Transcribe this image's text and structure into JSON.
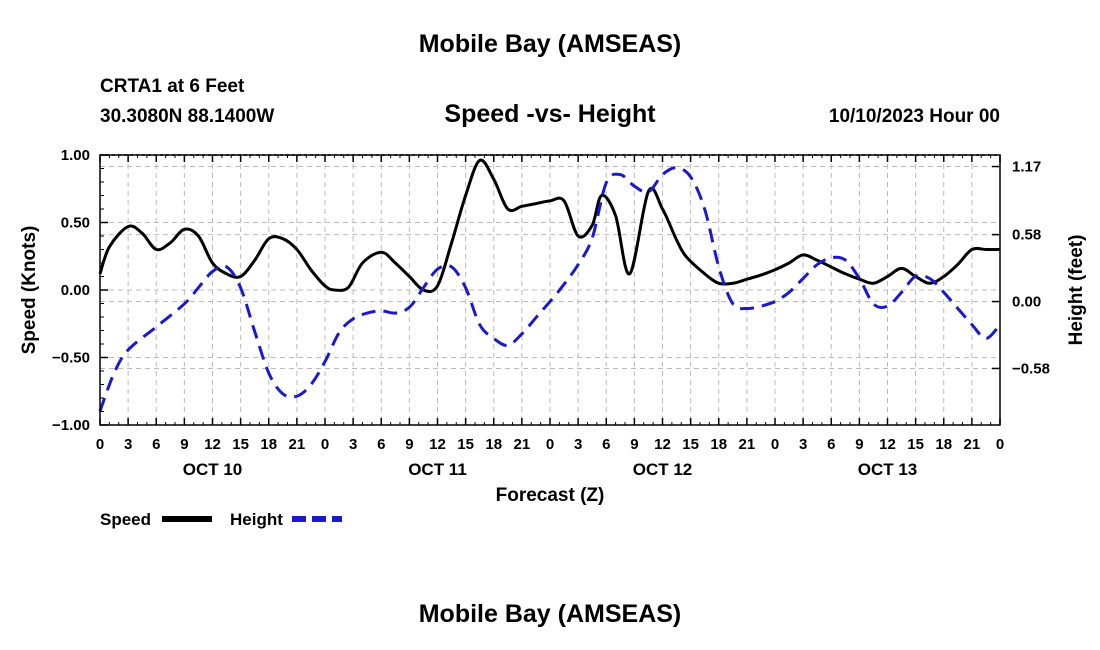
{
  "header": {
    "title": "Mobile Bay (AMSEAS)",
    "station": "CRTA1 at 6 Feet",
    "coords": "30.3080N  88.1400W",
    "subtitle": "Speed -vs- Height",
    "datetime": "10/10/2023 Hour 00"
  },
  "footer": {
    "repeat_title": "Mobile Bay (AMSEAS)"
  },
  "chart_data": {
    "type": "line",
    "title": "Speed -vs- Height",
    "xlabel": "Forecast (Z)",
    "ylabel": "Speed (Knots)",
    "y2label": "Height (feet)",
    "ylim": [
      -1.0,
      1.0
    ],
    "y2lim": [
      -1.07,
      1.27
    ],
    "xlim": [
      0,
      96
    ],
    "yticks": [
      -1.0,
      -0.5,
      0.0,
      0.5,
      1.0
    ],
    "yticklabels": [
      "−1.00",
      "−0.50",
      "0.00",
      "0.50",
      "1.00"
    ],
    "y2ticks": [
      -0.58,
      0.0,
      0.58,
      1.17
    ],
    "y2ticklabels": [
      "−0.58",
      "0.00",
      "0.58",
      "1.17"
    ],
    "xticks": [
      0,
      3,
      6,
      9,
      12,
      15,
      18,
      21,
      24,
      27,
      30,
      33,
      36,
      39,
      42,
      45,
      48,
      51,
      54,
      57,
      60,
      63,
      66,
      69,
      72,
      75,
      78,
      81,
      84,
      87,
      90,
      93,
      96
    ],
    "xticklabels": [
      "0",
      "3",
      "6",
      "9",
      "12",
      "15",
      "18",
      "21",
      "0",
      "3",
      "6",
      "9",
      "12",
      "15",
      "18",
      "21",
      "0",
      "3",
      "6",
      "9",
      "12",
      "15",
      "18",
      "21",
      "0",
      "3",
      "6",
      "9",
      "12",
      "15",
      "18",
      "21",
      "0"
    ],
    "day_labels": [
      {
        "x": 12,
        "label": "OCT 10"
      },
      {
        "x": 36,
        "label": "OCT 11"
      },
      {
        "x": 60,
        "label": "OCT 12"
      },
      {
        "x": 84,
        "label": "OCT 13"
      }
    ],
    "grid": true,
    "legend": {
      "placement": "bottom-left",
      "entries": [
        {
          "name": "Speed",
          "color": "#000000",
          "style": "solid"
        },
        {
          "name": "Height",
          "color": "#1a1acc",
          "style": "dashed"
        }
      ]
    },
    "series": [
      {
        "name": "Speed",
        "axis": "left",
        "color": "#000000",
        "style": "solid",
        "x": [
          0,
          1,
          3,
          4.5,
          6,
          7.5,
          9,
          10.5,
          12,
          13.5,
          15,
          16.5,
          18,
          19.5,
          21,
          22.5,
          24,
          25,
          26.5,
          28,
          30,
          31.5,
          33,
          34.5,
          36,
          37.5,
          39,
          40.5,
          42,
          43.5,
          45,
          46.5,
          48,
          49.5,
          51,
          52.5,
          53.5,
          55,
          56.5,
          58.5,
          60,
          61.5,
          62.5,
          64.5,
          66,
          67.5,
          69,
          70.5,
          72,
          73.5,
          75,
          76.5,
          78,
          79.5,
          81,
          82.5,
          84,
          85.5,
          87,
          88.5,
          90,
          91.5,
          93,
          94.5,
          96
        ],
        "values": [
          0.12,
          0.32,
          0.47,
          0.42,
          0.3,
          0.35,
          0.45,
          0.4,
          0.2,
          0.12,
          0.1,
          0.22,
          0.38,
          0.38,
          0.3,
          0.15,
          0.03,
          0.0,
          0.02,
          0.2,
          0.28,
          0.2,
          0.1,
          0.0,
          0.03,
          0.35,
          0.7,
          0.96,
          0.82,
          0.6,
          0.62,
          0.64,
          0.66,
          0.66,
          0.4,
          0.48,
          0.7,
          0.55,
          0.12,
          0.73,
          0.6,
          0.37,
          0.25,
          0.12,
          0.05,
          0.05,
          0.08,
          0.11,
          0.15,
          0.2,
          0.26,
          0.22,
          0.17,
          0.12,
          0.08,
          0.05,
          0.1,
          0.16,
          0.1,
          0.05,
          0.1,
          0.19,
          0.3,
          0.3,
          0.3
        ]
      },
      {
        "name": "Height",
        "axis": "right",
        "color": "#1a1acc",
        "style": "dashed",
        "x": [
          0,
          1.5,
          3,
          6,
          9,
          10.5,
          12,
          13.5,
          15,
          16.5,
          18,
          19.5,
          21,
          22.5,
          24,
          25.5,
          27,
          28.5,
          30,
          31.5,
          33,
          34.5,
          36,
          37.5,
          39,
          40.5,
          42,
          43.5,
          45,
          46.5,
          48,
          49.5,
          51,
          52.5,
          54,
          55.5,
          57,
          58.5,
          60,
          61.5,
          63,
          64.5,
          66,
          67.5,
          69,
          70.5,
          72,
          73.5,
          75,
          76.5,
          78,
          79.5,
          81,
          82.5,
          84,
          85.5,
          87,
          88.5,
          90,
          91.5,
          93,
          94.5,
          96
        ],
        "values": [
          -0.95,
          -0.62,
          -0.42,
          -0.22,
          -0.02,
          0.12,
          0.26,
          0.3,
          0.12,
          -0.26,
          -0.62,
          -0.8,
          -0.82,
          -0.72,
          -0.52,
          -0.27,
          -0.15,
          -0.1,
          -0.08,
          -0.1,
          -0.05,
          0.12,
          0.28,
          0.3,
          0.12,
          -0.2,
          -0.32,
          -0.38,
          -0.28,
          -0.14,
          0.0,
          0.15,
          0.32,
          0.55,
          1.03,
          1.1,
          1.0,
          0.95,
          1.1,
          1.16,
          1.08,
          0.8,
          0.3,
          -0.02,
          -0.06,
          -0.04,
          0.0,
          0.08,
          0.2,
          0.32,
          0.38,
          0.36,
          0.2,
          -0.02,
          -0.04,
          0.08,
          0.22,
          0.2,
          0.08,
          -0.06,
          -0.2,
          -0.32,
          -0.2
        ]
      }
    ]
  }
}
